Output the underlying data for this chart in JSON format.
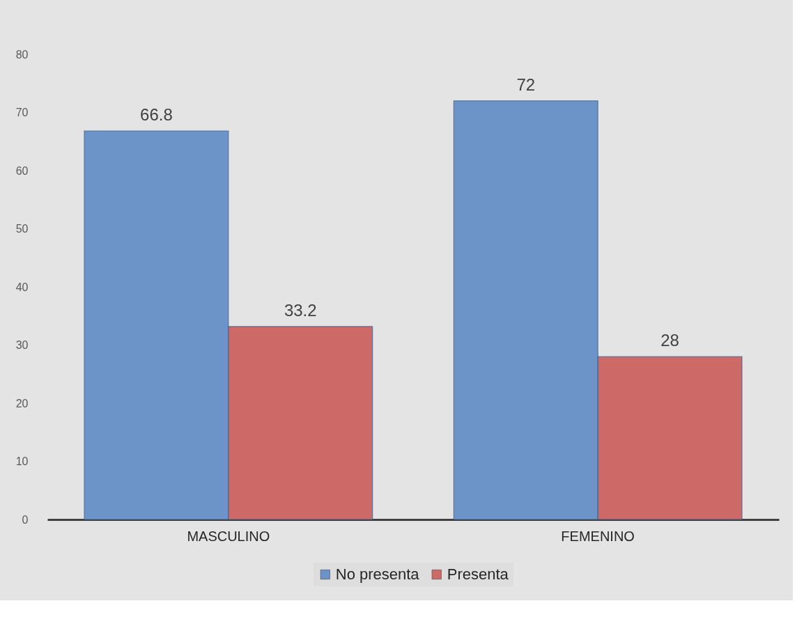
{
  "chart_data": {
    "type": "bar",
    "categories": [
      "MASCULINO",
      "FEMENINO"
    ],
    "series": [
      {
        "name": "No presenta",
        "color": "#6690c8",
        "values": [
          66.8,
          72
        ]
      },
      {
        "name": "Presenta",
        "color": "#cc6462",
        "values": [
          33.2,
          28
        ]
      }
    ],
    "ylim": [
      0,
      80
    ],
    "yticks": [
      0,
      10,
      20,
      30,
      40,
      50,
      60,
      70,
      80
    ],
    "grid": false,
    "legend": "bottom",
    "data_labels": true
  }
}
